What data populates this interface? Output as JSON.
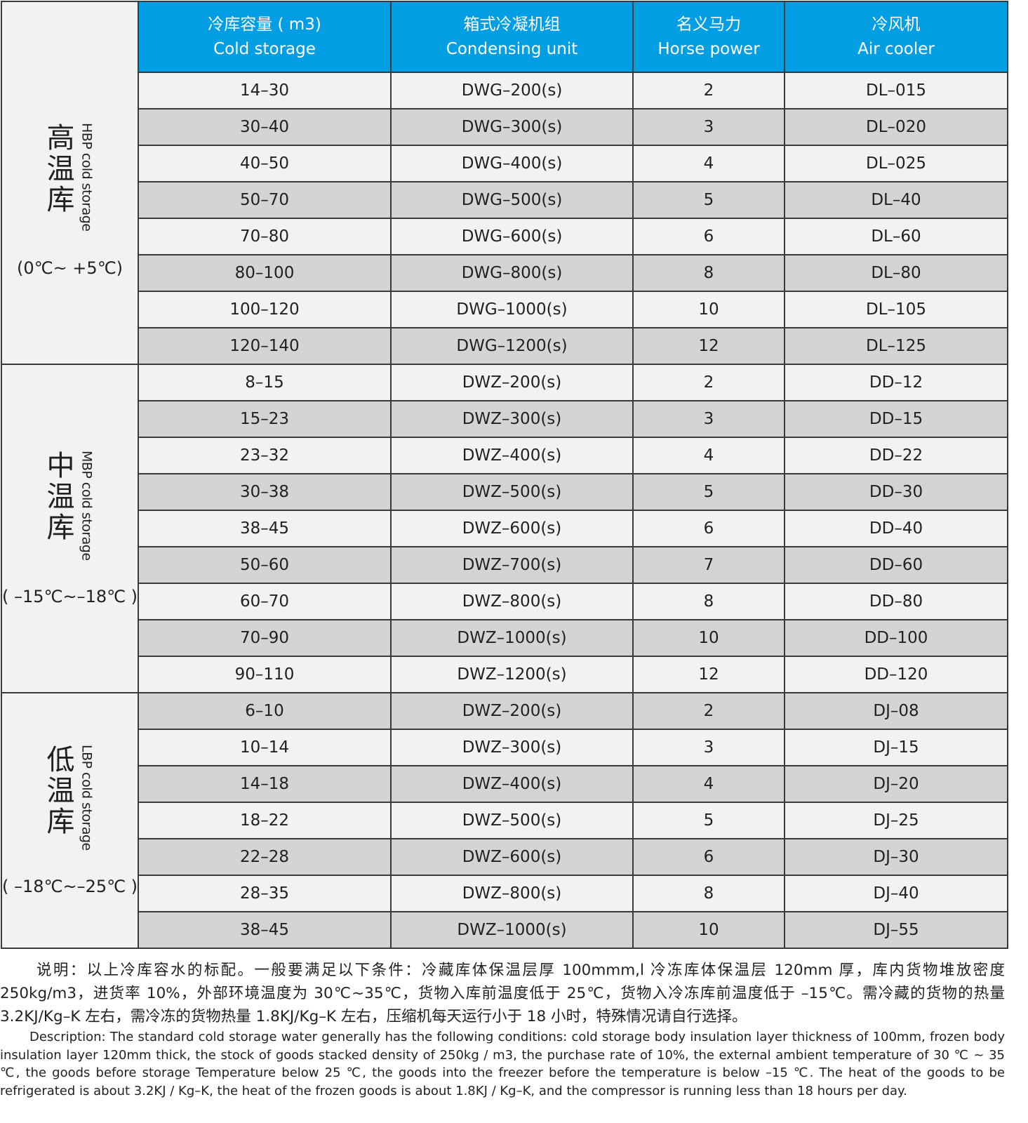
{
  "header": [
    {
      "cn": "冷库容量 ( m3)",
      "en": "Cold storage"
    },
    {
      "cn": "箱式冷凝机组",
      "en": "Condensing unit"
    },
    {
      "cn": "名义马力",
      "en": "Horse power"
    },
    {
      "cn": "冷风机",
      "en": "Air cooler"
    }
  ],
  "groups": [
    {
      "cn": "高温库",
      "en": "HBP cold storage",
      "temp": "(0℃~ +5℃)",
      "rows": [
        [
          "14–30",
          "DWG–200(s)",
          "2",
          "DL–015"
        ],
        [
          "30–40",
          "DWG–300(s)",
          "3",
          "DL–020"
        ],
        [
          "40–50",
          "DWG–400(s)",
          "4",
          "DL–025"
        ],
        [
          "50–70",
          "DWG–500(s)",
          "5",
          "DL–40"
        ],
        [
          "70–80",
          "DWG–600(s)",
          "6",
          "DL–60"
        ],
        [
          "80–100",
          "DWG–800(s)",
          "8",
          "DL–80"
        ],
        [
          "100–120",
          "DWG–1000(s)",
          "10",
          "DL–105"
        ],
        [
          "120–140",
          "DWG–1200(s)",
          "12",
          "DL–125"
        ]
      ]
    },
    {
      "cn": "中温库",
      "en": "MBP cold storage",
      "temp": "( –15℃~–18℃ )",
      "rows": [
        [
          "8–15",
          "DWZ–200(s)",
          "2",
          "DD–12"
        ],
        [
          "15–23",
          "DWZ–300(s)",
          "3",
          "DD–15"
        ],
        [
          "23–32",
          "DWZ–400(s)",
          "4",
          "DD–22"
        ],
        [
          "30–38",
          "DWZ–500(s)",
          "5",
          "DD–30"
        ],
        [
          "38–45",
          "DWZ–600(s)",
          "6",
          "DD–40"
        ],
        [
          "50–60",
          "DWZ–700(s)",
          "7",
          "DD–60"
        ],
        [
          "60–70",
          "DWZ–800(s)",
          "8",
          "DD–80"
        ],
        [
          "70–90",
          "DWZ–1000(s)",
          "10",
          "DD–100"
        ],
        [
          "90–110",
          "DWZ–1200(s)",
          "12",
          "DD–120"
        ]
      ]
    },
    {
      "cn": "低温库",
      "en": "LBP cold storage",
      "temp": "( –18℃~–25℃ )",
      "rows": [
        [
          "6–10",
          "DWZ–200(s)",
          "2",
          "DJ–08"
        ],
        [
          "10–14",
          "DWZ–300(s)",
          "3",
          "DJ–15"
        ],
        [
          "14–18",
          "DWZ–400(s)",
          "4",
          "DJ–20"
        ],
        [
          "18–22",
          "DWZ–500(s)",
          "5",
          "DJ–25"
        ],
        [
          "22–28",
          "DWZ–600(s)",
          "6",
          "DJ–30"
        ],
        [
          "28–35",
          "DWZ–800(s)",
          "8",
          "DJ–40"
        ],
        [
          "38–45",
          "DWZ–1000(s)",
          "10",
          "DJ–55"
        ]
      ]
    }
  ],
  "notes": {
    "cn": "说明：以上冷库容水的标配。一般要满足以下条件：冷藏库体保温层厚 100mmm,l 冷冻库体保温层 120mm 厚，库内货物堆放密度 250kg/m3，进货率 10%，外部环境温度为 30℃~35℃，货物入库前温度低于 25℃，货物入冷冻库前温度低于 –15℃。需冷藏的货物的热量 3.2KJ/Kg–K 左右，需冷冻的货物热量 1.8KJ/Kg–K 左右，压缩机每天运行小于 18 小时，特殊情况请自行选择。",
    "en": "Description: The standard cold storage water generally has the following conditions: cold storage body insulation layer thickness of 100mm, frozen body insulation layer 120mm thick, the stock of goods stacked density of 250kg / m3, the purchase rate of 10%, the external ambient temperature of 30 ℃ ~ 35 ℃, the goods before storage Temperature below 25 ℃, the goods into the freezer before the temperature is below –15 ℃. The heat of the goods to be refrigerated is about 3.2KJ / Kg–K, the heat of the frozen goods is about 1.8KJ / Kg–K, and the compressor is running less than 18 hours per day."
  },
  "colors": {
    "header_bg": "#019ee3",
    "row_light": "#f2f2f2",
    "row_dark": "#d4d4d4"
  }
}
